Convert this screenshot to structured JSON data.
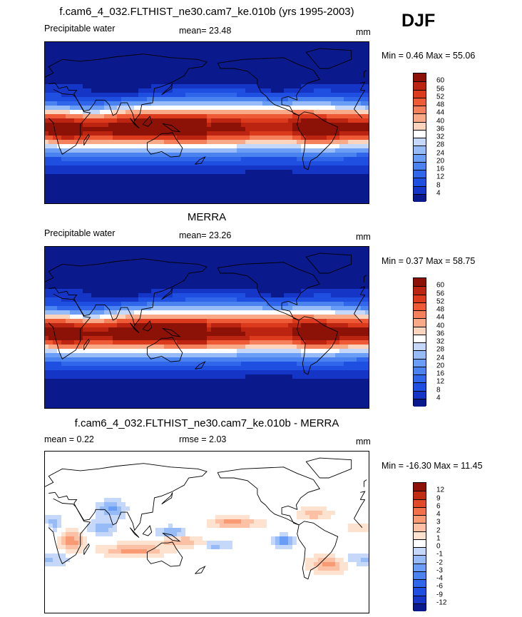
{
  "season": "DJF",
  "panels": [
    {
      "title": "f.cam6_4_032.FLTHIST_ne30.cam7_ke.010b (yrs 1995-2003)",
      "left_label": "Precipitable water",
      "center_label": "mean=  23.48",
      "units": "mm",
      "minmax": "Min =   0.46 Max =  55.06",
      "field": "abs",
      "colorbar": {
        "colors": [
          "#0a1a8c",
          "#1535c6",
          "#1f4fe0",
          "#2f66ea",
          "#4a82f0",
          "#6a9df5",
          "#97bbf7",
          "#c6d8fa",
          "#ffffff",
          "#fcd3bd",
          "#f8a987",
          "#f4805c",
          "#ee5a36",
          "#dc3a1c",
          "#bb2410",
          "#8c1207"
        ],
        "ticks": [
          "4",
          "8",
          "12",
          "16",
          "20",
          "24",
          "28",
          "32",
          "36",
          "40",
          "44",
          "48",
          "52",
          "56",
          "60"
        ]
      }
    },
    {
      "title": "MERRA",
      "left_label": "Precipitable water",
      "center_label": "mean=  23.26",
      "units": "mm",
      "minmax": "Min =   0.37 Max =  58.75",
      "field": "abs",
      "colorbar": {
        "colors": [
          "#0a1a8c",
          "#1535c6",
          "#1f4fe0",
          "#2f66ea",
          "#4a82f0",
          "#6a9df5",
          "#97bbf7",
          "#c6d8fa",
          "#ffffff",
          "#fcd3bd",
          "#f8a987",
          "#f4805c",
          "#ee5a36",
          "#dc3a1c",
          "#bb2410",
          "#8c1207"
        ],
        "ticks": [
          "4",
          "8",
          "12",
          "16",
          "20",
          "24",
          "28",
          "32",
          "36",
          "40",
          "44",
          "48",
          "52",
          "56",
          "60"
        ]
      }
    },
    {
      "title": "f.cam6_4_032.FLTHIST_ne30.cam7_ke.010b - MERRA",
      "left_label": "mean =   0.22",
      "center_label": "rmse =   2.03",
      "units": "mm",
      "minmax": "Min = -16.30 Max =  11.45",
      "field": "diff",
      "colorbar": {
        "colors": [
          "#0a1a8c",
          "#1535c6",
          "#1f4fe0",
          "#2f66ea",
          "#4a82f0",
          "#6a9df5",
          "#97bbf7",
          "#c6d8fa",
          "#ffffff",
          "#fde2d0",
          "#fcc1a4",
          "#f89a74",
          "#f2704a",
          "#e04a28",
          "#c02c12",
          "#8c1207"
        ],
        "ticks": [
          "-12",
          "-9",
          "-6",
          "-4",
          "-3",
          "-2",
          "-1",
          "0",
          "1",
          "2",
          "3",
          "4",
          "6",
          "9",
          "12"
        ]
      }
    }
  ]
}
